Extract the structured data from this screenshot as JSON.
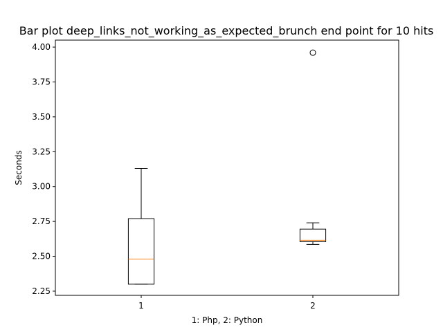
{
  "chart_data": {
    "type": "box",
    "title": "Bar plot deep_links_not_working_as_expected_brunch end point for 10 hits",
    "xlabel": "1: Php, 2: Python",
    "ylabel": "Seconds",
    "categories": [
      "1",
      "2"
    ],
    "ylim": [
      2.22,
      4.05
    ],
    "xlim": [
      0.5,
      2.5
    ],
    "yticks": [
      "2.25",
      "2.50",
      "2.75",
      "3.00",
      "3.25",
      "3.50",
      "3.75",
      "4.00"
    ],
    "boxes": [
      {
        "category": "1",
        "whisker_low": 2.3,
        "q1": 2.3,
        "median": 2.48,
        "q3": 2.77,
        "whisker_high": 3.13,
        "outliers": []
      },
      {
        "category": "2",
        "whisker_low": 2.585,
        "q1": 2.605,
        "median": 2.615,
        "q3": 2.695,
        "whisker_high": 2.74,
        "outliers": [
          3.96
        ]
      }
    ],
    "colors": {
      "box": "#000000",
      "median": "#ff7f0e",
      "outlier": "#000000"
    },
    "grid": false,
    "legend": "none"
  }
}
